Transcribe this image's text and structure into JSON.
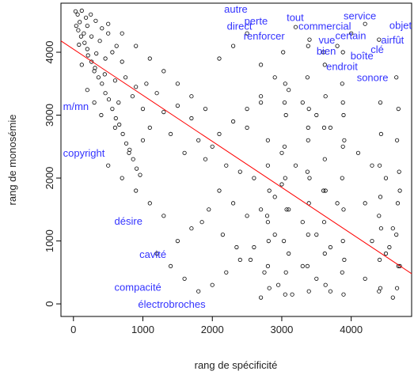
{
  "chart_data": {
    "type": "scatter",
    "xlabel": "rang de spécificité",
    "ylabel": "rang de monosémie",
    "xlim": [
      -180,
      4870
    ],
    "ylim": [
      -200,
      4780
    ],
    "xticks": [
      "0",
      "1000",
      "2000",
      "3000",
      "4000"
    ],
    "yticks": [
      "0",
      "1000",
      "2000",
      "3000",
      "4000"
    ],
    "grid": false,
    "point_color": "#000000",
    "regression_line": {
      "color": "#ff0000",
      "start": [
        -180,
        4180
      ],
      "end": [
        4870,
        480
      ]
    },
    "label_color": "#3333ff",
    "annotations": [
      {
        "text": "autre",
        "x": 2170,
        "y": 4630
      },
      {
        "text": "tout",
        "x": 3070,
        "y": 4500
      },
      {
        "text": "service",
        "x": 3890,
        "y": 4520
      },
      {
        "text": "perte",
        "x": 2460,
        "y": 4440
      },
      {
        "text": "direct",
        "x": 2210,
        "y": 4360
      },
      {
        "text": "commercial",
        "x": 3240,
        "y": 4360
      },
      {
        "text": "objet",
        "x": 4550,
        "y": 4370
      },
      {
        "text": "renforcer",
        "x": 2450,
        "y": 4200
      },
      {
        "text": "certain",
        "x": 3770,
        "y": 4210
      },
      {
        "text": "vue",
        "x": 3530,
        "y": 4140
      },
      {
        "text": "airfût",
        "x": 4430,
        "y": 4140
      },
      {
        "text": "clé",
        "x": 4280,
        "y": 3990
      },
      {
        "text": "bien",
        "x": 3500,
        "y": 3960
      },
      {
        "text": "boîte",
        "x": 3990,
        "y": 3890
      },
      {
        "text": "endroit",
        "x": 3640,
        "y": 3720
      },
      {
        "text": "sonore",
        "x": 4080,
        "y": 3540
      },
      {
        "text": "m/mn",
        "x": -150,
        "y": 3080
      },
      {
        "text": "copyright",
        "x": -150,
        "y": 2340
      },
      {
        "text": "désire",
        "x": 590,
        "y": 1260
      },
      {
        "text": "cavité",
        "x": 950,
        "y": 730
      },
      {
        "text": "compacité",
        "x": 590,
        "y": 210
      },
      {
        "text": "électrobroches",
        "x": 930,
        "y": -60
      }
    ],
    "series": [
      {
        "points": [
          [
            30,
            4650
          ],
          [
            60,
            4600
          ],
          [
            120,
            4660
          ],
          [
            180,
            4550
          ],
          [
            250,
            4600
          ],
          [
            90,
            4480
          ],
          [
            200,
            4420
          ],
          [
            320,
            4500
          ],
          [
            410,
            4380
          ],
          [
            150,
            4300
          ],
          [
            260,
            4250
          ],
          [
            380,
            4180
          ],
          [
            500,
            4300
          ],
          [
            620,
            4100
          ],
          [
            80,
            4120
          ],
          [
            200,
            4050
          ],
          [
            330,
            3980
          ],
          [
            460,
            3900
          ],
          [
            560,
            4000
          ],
          [
            700,
            3850
          ],
          [
            120,
            3800
          ],
          [
            300,
            3700
          ],
          [
            450,
            3650
          ],
          [
            600,
            3550
          ],
          [
            750,
            3600
          ],
          [
            900,
            3450
          ],
          [
            1050,
            3500
          ],
          [
            1200,
            3350
          ],
          [
            850,
            3300
          ],
          [
            650,
            3200
          ],
          [
            1000,
            3100
          ],
          [
            1300,
            3050
          ],
          [
            1500,
            3150
          ],
          [
            1700,
            2950
          ],
          [
            1100,
            2800
          ],
          [
            1400,
            2700
          ],
          [
            1800,
            2600
          ],
          [
            2000,
            2500
          ],
          [
            1600,
            2400
          ],
          [
            1900,
            2300
          ],
          [
            2200,
            2200
          ],
          [
            2400,
            2100
          ],
          [
            2600,
            2000
          ],
          [
            2100,
            1800
          ],
          [
            2300,
            1600
          ],
          [
            2500,
            1400
          ],
          [
            2700,
            1500
          ],
          [
            2800,
            1300
          ],
          [
            2900,
            1100
          ],
          [
            2600,
            900
          ],
          [
            2400,
            700
          ],
          [
            2200,
            500
          ],
          [
            2000,
            300
          ],
          [
            1800,
            200
          ],
          [
            1600,
            400
          ],
          [
            1400,
            600
          ],
          [
            1200,
            800
          ],
          [
            1500,
            1000
          ],
          [
            1700,
            1200
          ],
          [
            1300,
            1400
          ],
          [
            1100,
            1600
          ],
          [
            900,
            1800
          ],
          [
            700,
            2000
          ],
          [
            500,
            2200
          ],
          [
            800,
            2400
          ],
          [
            1000,
            2600
          ],
          [
            600,
            2800
          ],
          [
            400,
            3000
          ],
          [
            300,
            3200
          ],
          [
            200,
            3400
          ],
          [
            2100,
            3900
          ],
          [
            2300,
            4100
          ],
          [
            2500,
            4300
          ],
          [
            2700,
            3800
          ],
          [
            2900,
            3600
          ],
          [
            3100,
            3400
          ],
          [
            3300,
            3200
          ],
          [
            3500,
            3000
          ],
          [
            3700,
            2800
          ],
          [
            3900,
            2600
          ],
          [
            4100,
            2400
          ],
          [
            4300,
            2200
          ],
          [
            4500,
            2000
          ],
          [
            4700,
            1800
          ],
          [
            4200,
            1600
          ],
          [
            4400,
            1400
          ],
          [
            4600,
            1200
          ],
          [
            4300,
            1000
          ],
          [
            4500,
            800
          ],
          [
            4700,
            600
          ],
          [
            4200,
            400
          ],
          [
            4400,
            200
          ],
          [
            4600,
            100
          ],
          [
            3200,
            4400
          ],
          [
            3400,
            4200
          ],
          [
            3600,
            4000
          ],
          [
            3800,
            4100
          ],
          [
            4000,
            4300
          ],
          [
            4200,
            4450
          ],
          [
            4400,
            4200
          ],
          [
            2700,
            3200
          ],
          [
            2500,
            2800
          ],
          [
            2800,
            2600
          ],
          [
            3000,
            2400
          ],
          [
            3200,
            2200
          ],
          [
            3400,
            2000
          ],
          [
            3600,
            1800
          ],
          [
            3800,
            1600
          ],
          [
            3000,
            1900
          ],
          [
            2900,
            1700
          ],
          [
            3100,
            1500
          ],
          [
            3300,
            1300
          ],
          [
            3500,
            1100
          ],
          [
            3700,
            900
          ],
          [
            3900,
            700
          ],
          [
            3100,
            800
          ],
          [
            3300,
            600
          ],
          [
            3500,
            400
          ],
          [
            3700,
            200
          ],
          [
            2700,
            100
          ],
          [
            1900,
            3100
          ],
          [
            1700,
            3300
          ],
          [
            1500,
            3500
          ],
          [
            1300,
            3700
          ],
          [
            1100,
            3900
          ],
          [
            900,
            4100
          ],
          [
            700,
            4300
          ],
          [
            500,
            4450
          ],
          [
            2100,
            2700
          ],
          [
            2300,
            2900
          ],
          [
            2500,
            3100
          ],
          [
            2700,
            3300
          ],
          [
            1950,
            1500
          ],
          [
            1850,
            1300
          ],
          [
            2150,
            1100
          ],
          [
            2350,
            900
          ],
          [
            2550,
            700
          ],
          [
            2750,
            500
          ],
          [
            2950,
            300
          ],
          [
            3150,
            150
          ],
          [
            3020,
            4000
          ],
          [
            3050,
            3500
          ],
          [
            3060,
            3000
          ],
          [
            3040,
            2500
          ],
          [
            3050,
            2000
          ],
          [
            3070,
            1500
          ],
          [
            3030,
            1000
          ],
          [
            3060,
            500
          ],
          [
            3050,
            150
          ],
          [
            3040,
            3200
          ],
          [
            3380,
            4100
          ],
          [
            3370,
            3600
          ],
          [
            3390,
            3100
          ],
          [
            3380,
            2600
          ],
          [
            3370,
            2100
          ],
          [
            3390,
            1600
          ],
          [
            3380,
            1100
          ],
          [
            3370,
            600
          ],
          [
            3390,
            200
          ],
          [
            3380,
            2800
          ],
          [
            3880,
            4000
          ],
          [
            3870,
            3500
          ],
          [
            3890,
            3000
          ],
          [
            3880,
            2500
          ],
          [
            3870,
            2000
          ],
          [
            3890,
            1500
          ],
          [
            3880,
            1000
          ],
          [
            3870,
            500
          ],
          [
            3890,
            150
          ],
          [
            3880,
            3200
          ],
          [
            3620,
            3800
          ],
          [
            3630,
            3300
          ],
          [
            3610,
            2800
          ],
          [
            3620,
            2300
          ],
          [
            3630,
            1800
          ],
          [
            3610,
            1300
          ],
          [
            3620,
            800
          ],
          [
            3630,
            300
          ],
          [
            2800,
            2200
          ],
          [
            2820,
            1800
          ],
          [
            2790,
            1400
          ],
          [
            2810,
            1000
          ],
          [
            2800,
            600
          ],
          [
            2820,
            250
          ],
          [
            4420,
            3200
          ],
          [
            4430,
            2700
          ],
          [
            4410,
            2200
          ],
          [
            4420,
            1700
          ],
          [
            4430,
            1200
          ],
          [
            4410,
            700
          ],
          [
            4420,
            250
          ],
          [
            4650,
            3600
          ],
          [
            4680,
            3100
          ],
          [
            4660,
            2600
          ],
          [
            4690,
            2100
          ],
          [
            4670,
            1600
          ],
          [
            4650,
            1100
          ],
          [
            4680,
            600
          ],
          [
            4660,
            250
          ],
          [
            4550,
            900
          ],
          [
            40,
            4420
          ],
          [
            70,
            4350
          ],
          [
            110,
            4250
          ],
          [
            160,
            4150
          ],
          [
            210,
            3950
          ],
          [
            260,
            3850
          ],
          [
            310,
            3750
          ],
          [
            360,
            3600
          ],
          [
            410,
            3500
          ],
          [
            460,
            3350
          ],
          [
            510,
            3250
          ],
          [
            560,
            3100
          ],
          [
            610,
            2950
          ],
          [
            660,
            2850
          ],
          [
            710,
            2700
          ],
          [
            760,
            2550
          ],
          [
            810,
            2450
          ],
          [
            860,
            2300
          ],
          [
            910,
            2150
          ],
          [
            960,
            2050
          ]
        ]
      }
    ]
  }
}
